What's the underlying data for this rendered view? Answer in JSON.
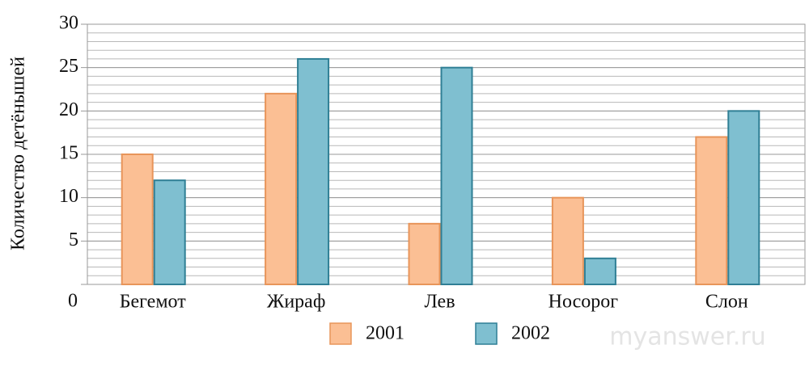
{
  "chart_data": {
    "type": "bar",
    "ylabel": "Количество детёнышей",
    "categories": [
      "Бегемот",
      "Жираф",
      "Лев",
      "Носорог",
      "Слон"
    ],
    "series": [
      {
        "name": "2001",
        "color": "#fbbf94",
        "values": [
          15,
          22,
          7,
          10,
          17
        ]
      },
      {
        "name": "2002",
        "color": "#7fbfd0",
        "values": [
          12,
          26,
          25,
          3,
          20
        ]
      }
    ],
    "ylim": [
      0,
      30
    ],
    "yticks": [
      0,
      5,
      10,
      15,
      20,
      25,
      30
    ],
    "grid": true,
    "yminor": 1,
    "legend": "bottom",
    "watermark": "myanswer.ru"
  }
}
